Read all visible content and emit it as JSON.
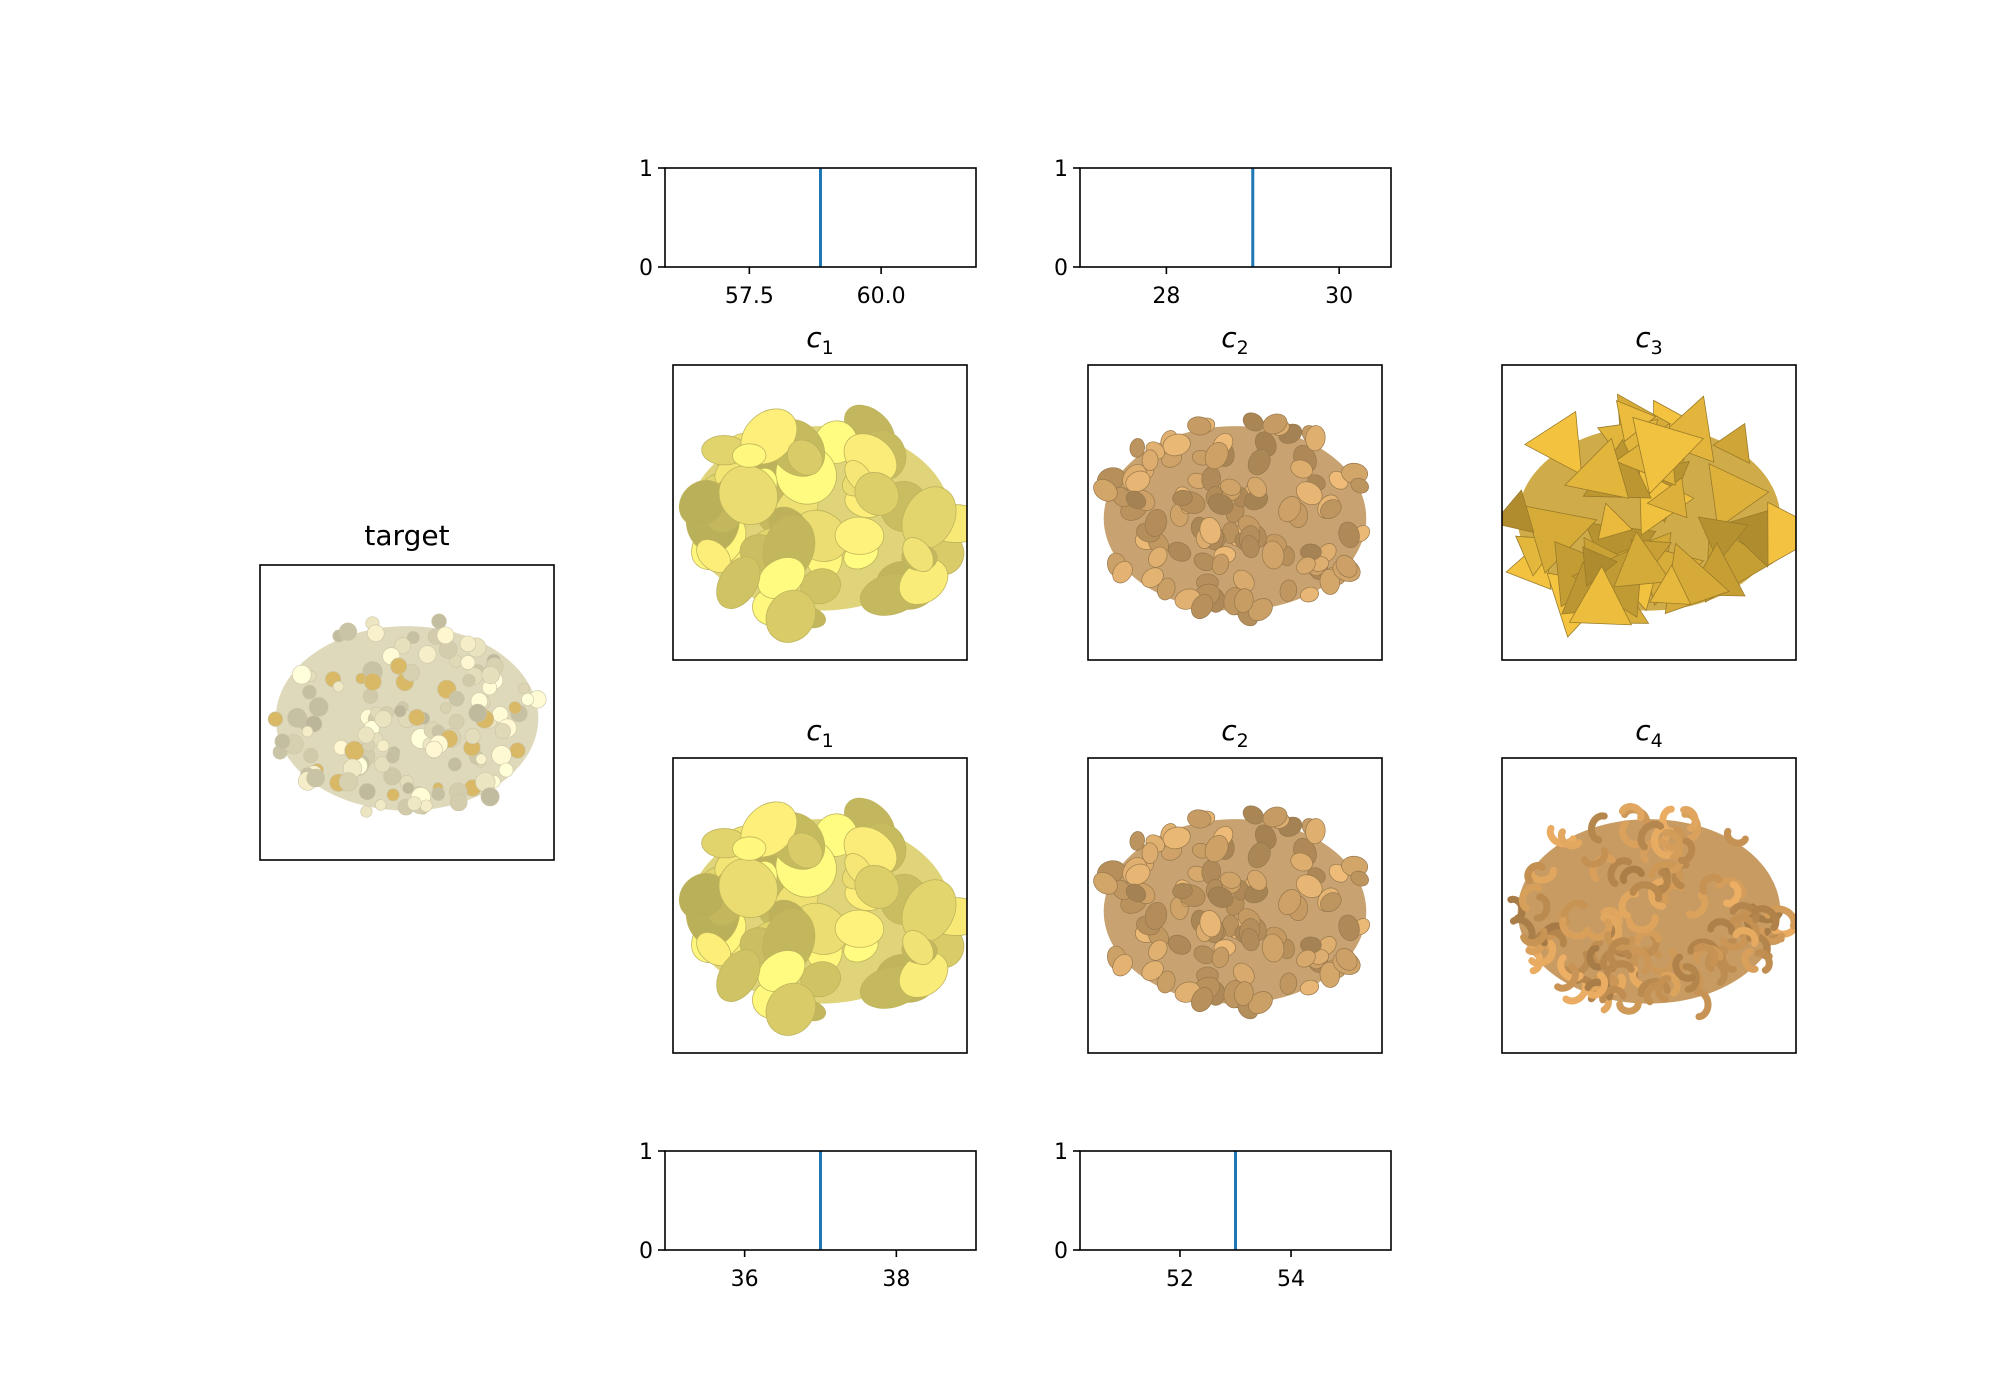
{
  "figure": {
    "target_title": "target",
    "target_image": "popcorn",
    "top_row": [
      {
        "title": "c",
        "sub": "1",
        "image": "potato-chips"
      },
      {
        "title": "c",
        "sub": "2",
        "image": "peanuts"
      },
      {
        "title": "c",
        "sub": "3",
        "image": "tortilla-chips"
      }
    ],
    "bottom_row": [
      {
        "title": "c",
        "sub": "1",
        "image": "potato-chips"
      },
      {
        "title": "c",
        "sub": "2",
        "image": "peanuts"
      },
      {
        "title": "c",
        "sub": "4",
        "image": "cashews"
      }
    ]
  },
  "colors": {
    "line": "#1f77b4",
    "popcorn": "#efe8c4",
    "potato-chips": "#efe173",
    "peanuts": "#d3a66a",
    "tortilla-chips": "#dcb03a",
    "cashews": "#d39c59"
  },
  "chart_data": [
    {
      "type": "line",
      "title": "",
      "xlabel": "",
      "ylabel": "",
      "xlim": [
        55.9,
        61.8
      ],
      "ylim": [
        0,
        1
      ],
      "xticks": [
        "57.5",
        "60.0"
      ],
      "xtick_values": [
        57.5,
        60.0
      ],
      "yticks": [
        "0",
        "1"
      ],
      "vline_x": 58.85
    },
    {
      "type": "line",
      "title": "",
      "xlabel": "",
      "ylabel": "",
      "xlim": [
        27.0,
        30.6
      ],
      "ylim": [
        0,
        1
      ],
      "xticks": [
        "28",
        "30"
      ],
      "xtick_values": [
        28,
        30
      ],
      "yticks": [
        "0",
        "1"
      ],
      "vline_x": 29.0
    },
    {
      "type": "line",
      "title": "",
      "xlabel": "",
      "ylabel": "",
      "xlim": [
        34.95,
        39.05
      ],
      "ylim": [
        0,
        1
      ],
      "xticks": [
        "36",
        "38"
      ],
      "xtick_values": [
        36,
        38
      ],
      "yticks": [
        "0",
        "1"
      ],
      "vline_x": 37.0
    },
    {
      "type": "line",
      "title": "",
      "xlabel": "",
      "ylabel": "",
      "xlim": [
        50.2,
        55.8
      ],
      "ylim": [
        0,
        1
      ],
      "xticks": [
        "52",
        "54"
      ],
      "xtick_values": [
        52,
        54
      ],
      "yticks": [
        "0",
        "1"
      ],
      "vline_x": 53.0
    }
  ]
}
